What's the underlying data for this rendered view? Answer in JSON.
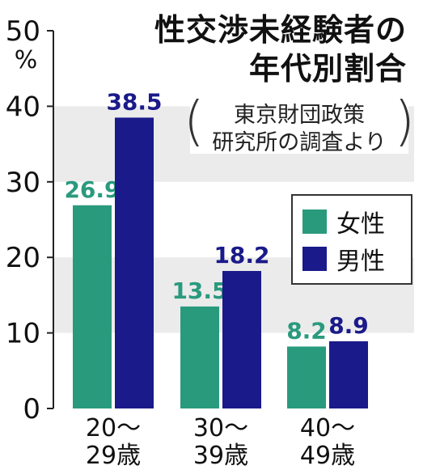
{
  "title_line1": "性交渉未経験者の",
  "title_line2": "年代別割合",
  "source_line1": "東京財団政策",
  "source_line2": "研究所の調査より",
  "colors": {
    "female": "#2a9a7d",
    "male": "#1a1a8a",
    "band": "#ebebeb"
  },
  "chart_data": {
    "type": "bar",
    "y_unit_label": "%",
    "ylim": [
      0,
      50
    ],
    "yticks": [
      "0",
      "10",
      "20",
      "30",
      "40",
      "50"
    ],
    "grid": "alternating horizontal bands",
    "legend": "right",
    "categories": [
      {
        "line1": "20～",
        "line2": "29歳"
      },
      {
        "line1": "30～",
        "line2": "39歳"
      },
      {
        "line1": "40～",
        "line2": "49歳"
      }
    ],
    "series": [
      {
        "name": "女性",
        "values": [
          26.9,
          13.5,
          8.2
        ],
        "labels": [
          "26.9",
          "13.5",
          "8.2"
        ]
      },
      {
        "name": "男性",
        "values": [
          38.5,
          18.2,
          8.9
        ],
        "labels": [
          "38.5",
          "18.2",
          "8.9"
        ]
      }
    ]
  }
}
